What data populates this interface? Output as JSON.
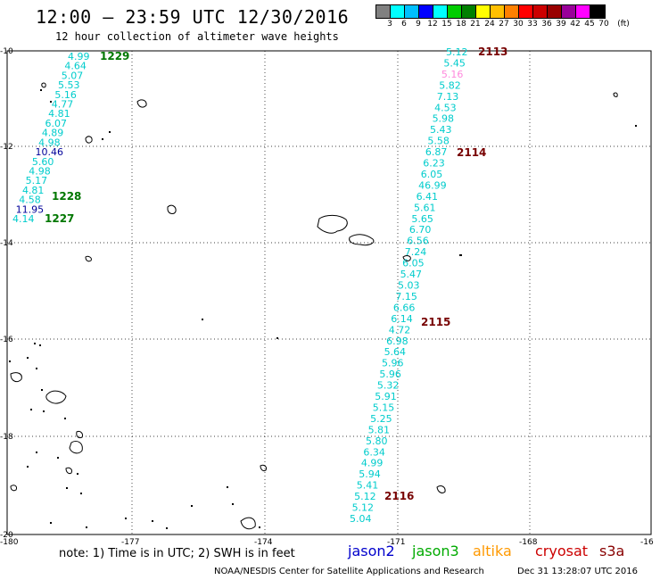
{
  "header": {
    "title": "12:00 – 23:59 UTC 12/30/2016",
    "subtitle": "12 hour collection of altimeter wave heights"
  },
  "legend": {
    "colors": [
      "#808080",
      "#00ffff",
      "#00bfff",
      "#0000ff",
      "#00ffff",
      "#00cc00",
      "#008000",
      "#ffff00",
      "#ffbf00",
      "#ff8000",
      "#ff0000",
      "#cc0000",
      "#990000",
      "#990099",
      "#ff00ff",
      "#000000"
    ],
    "labels": [
      "3",
      "6",
      "9",
      "12",
      "15",
      "18",
      "21",
      "24",
      "27",
      "30",
      "33",
      "36",
      "39",
      "42",
      "45",
      "70",
      "(ft)"
    ]
  },
  "axes": {
    "x_ticks": [
      "-180",
      "-177",
      "-174",
      "-171",
      "-168",
      "-16"
    ],
    "y_ticks": [
      "-10",
      "-12",
      "-14",
      "-16",
      "-18",
      "-20"
    ]
  },
  "track_right": {
    "values": [
      "5.12",
      "5.45",
      "5.16",
      "5.82",
      "7.13",
      "4.53",
      "5.98",
      "5.43",
      "5.58",
      "6.87",
      "6.23",
      "6.05",
      "46.99",
      "6.41",
      "5.61",
      "5.65",
      "6.70",
      "6.56",
      "7.24",
      "6.05",
      "5.47",
      "5.03",
      "7.15",
      "6.66",
      "6.14",
      "4.72",
      "6.98",
      "5.64",
      "5.96",
      "5.96",
      "5.32",
      "5.91",
      "5.15",
      "5.25",
      "5.81",
      "5.80",
      "6.34",
      "4.99",
      "5.94",
      "5.41",
      "5.12",
      "5.12",
      "5.04"
    ],
    "colors": {
      "2": "#ff88dd"
    }
  },
  "track_left": {
    "values": [
      "4.99",
      "4.64",
      "5.07",
      "5.53",
      "5.16",
      "4.77",
      "4.81",
      "6.07",
      "4.89",
      "4.98",
      "10.46",
      "5.60",
      "4.98",
      "5.17",
      "4.81",
      "4.58",
      "11.95",
      "4.14"
    ],
    "colors": {
      "10": "#000099",
      "16": "#000099"
    }
  },
  "time_labels_left": [
    {
      "text": "1229",
      "color": "#007700"
    },
    {
      "text": "1228",
      "color": "#007700"
    },
    {
      "text": "1227",
      "color": "#007700"
    }
  ],
  "time_labels_right": [
    {
      "text": "2113",
      "color": "#770000"
    },
    {
      "text": "2114",
      "color": "#770000"
    },
    {
      "text": "2115",
      "color": "#770000"
    },
    {
      "text": "2116",
      "color": "#770000"
    }
  ],
  "footer": {
    "note": "note:  1) Time is in UTC;  2) SWH is in feet",
    "satellites": [
      {
        "name": "jason2",
        "color": "#0000cc"
      },
      {
        "name": "jason3",
        "color": "#00aa00"
      },
      {
        "name": "altika",
        "color": "#ff9900"
      },
      {
        "name": "cryosat",
        "color": "#cc0000"
      },
      {
        "name": "s3a",
        "color": "#880000"
      }
    ],
    "credit": "NOAA/NESDIS Center for Satellite Applications and Research",
    "timestamp": "Dec 31 13:28:07 UTC 2016"
  }
}
